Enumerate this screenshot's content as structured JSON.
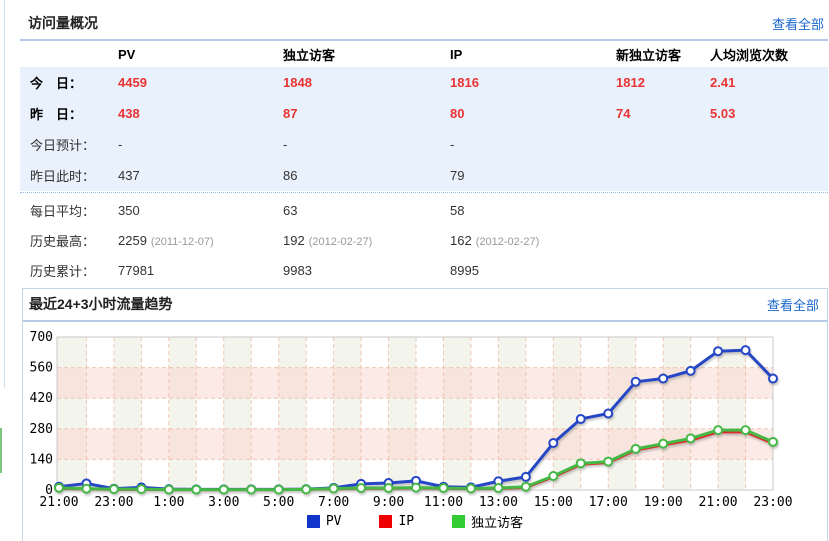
{
  "stats_panel": {
    "title": "访问量概况",
    "view_all": "查看全部",
    "columns": [
      "PV",
      "独立访客",
      "IP",
      "新独立访客",
      "人均浏览次数"
    ],
    "rows": [
      {
        "label": "今　日：",
        "values": [
          "4459",
          "1848",
          "1816",
          "1812",
          "2.41"
        ],
        "red": true,
        "bold": true,
        "section": "blue"
      },
      {
        "label": "昨　日：",
        "values": [
          "438",
          "87",
          "80",
          "74",
          "5.03"
        ],
        "red": true,
        "bold": true,
        "section": "blue"
      },
      {
        "label": "今日预计：",
        "values": [
          "-",
          "-",
          "-",
          "",
          ""
        ],
        "section": "blue"
      },
      {
        "label": "昨日此时：",
        "values": [
          "437",
          "86",
          "79",
          "",
          ""
        ],
        "section": "blue"
      },
      {
        "label": "每日平均：",
        "values": [
          "350",
          "63",
          "58",
          "",
          ""
        ],
        "divider_before": true
      },
      {
        "label": "历史最高：",
        "values": [
          "2259",
          "192",
          "162",
          "",
          ""
        ],
        "dates": [
          "(2011-12-07)",
          "(2012-02-27)",
          "(2012-02-27)",
          "",
          ""
        ]
      },
      {
        "label": "历史累计：",
        "values": [
          "77981",
          "9983",
          "8995",
          "",
          ""
        ]
      }
    ],
    "colors": {
      "highlight_red": "#ea3333",
      "row_blue_bg": "#e9f1fc",
      "link_blue": "#1a66cc"
    }
  },
  "chart_panel": {
    "title": "最近24+3小时流量趋势",
    "view_all": "查看全部"
  },
  "chart_data": {
    "type": "line",
    "title": "最近24+3小时流量趋势",
    "x": [
      "21:00",
      "22:00",
      "23:00",
      "0:00",
      "1:00",
      "2:00",
      "3:00",
      "4:00",
      "5:00",
      "6:00",
      "7:00",
      "8:00",
      "9:00",
      "10:00",
      "11:00",
      "12:00",
      "13:00",
      "14:00",
      "15:00",
      "16:00",
      "17:00",
      "18:00",
      "19:00",
      "20:00",
      "21:00",
      "22:00",
      "23:00"
    ],
    "x_tick_labels": [
      "21:00",
      "23:00",
      "1:00",
      "3:00",
      "5:00",
      "7:00",
      "9:00",
      "11:00",
      "13:00",
      "15:00",
      "17:00",
      "19:00",
      "21:00",
      "23:00"
    ],
    "ylim": [
      0,
      700
    ],
    "yticks": [
      0,
      140,
      280,
      420,
      560,
      700
    ],
    "grid": true,
    "legend_position": "bottom",
    "series": [
      {
        "name": "PV",
        "color": "#2547c6",
        "legend_color": "#1034cc",
        "values": [
          15,
          30,
          6,
          12,
          4,
          3,
          3,
          3,
          3,
          4,
          10,
          28,
          32,
          42,
          15,
          12,
          40,
          60,
          215,
          325,
          350,
          495,
          510,
          545,
          635,
          640,
          510
        ]
      },
      {
        "name": "IP",
        "color": "#e12b2b",
        "legend_color": "#ee0000",
        "values": [
          8,
          5,
          3,
          3,
          2,
          2,
          2,
          2,
          2,
          3,
          6,
          8,
          8,
          10,
          8,
          6,
          8,
          12,
          60,
          118,
          126,
          183,
          207,
          228,
          266,
          266,
          214
        ]
      },
      {
        "name": "独立访客",
        "color": "#46b846",
        "legend_color": "#33cc33",
        "values": [
          10,
          6,
          4,
          4,
          2,
          2,
          2,
          2,
          2,
          3,
          7,
          9,
          9,
          11,
          9,
          7,
          9,
          15,
          64,
          122,
          130,
          188,
          212,
          236,
          274,
          274,
          220
        ]
      }
    ],
    "style": {
      "band_ivory": "#f3f4ec",
      "band_pink_overlay": "rgba(249,216,209,0.55)",
      "grid_color": "#efc4b2",
      "plot_border": "#c9c9c9"
    }
  }
}
